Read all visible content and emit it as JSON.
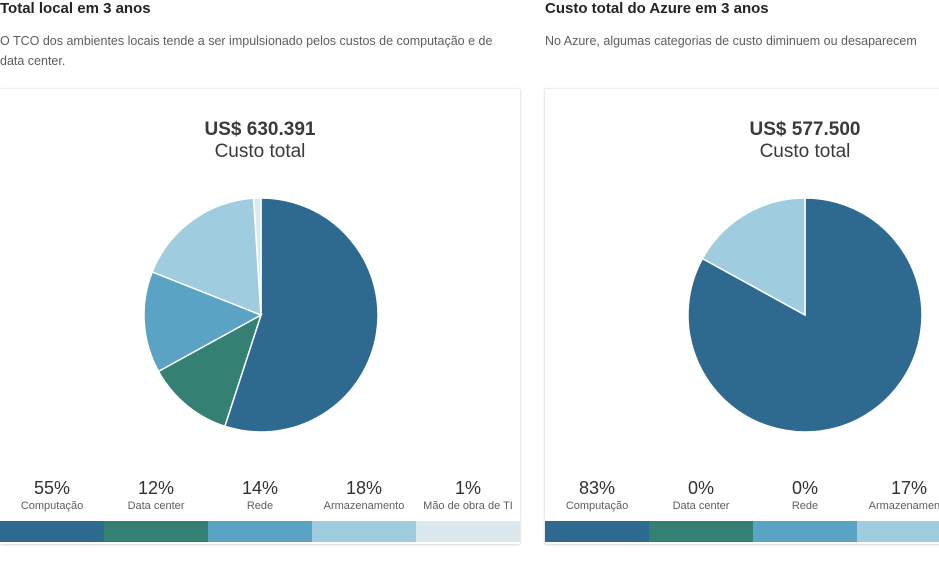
{
  "colors": {
    "computacao": "#2e6990",
    "data_center": "#348072",
    "rede": "#5ba3c5",
    "armazenamento": "#a0cce0",
    "mao_de_obra": "#dce8ee"
  },
  "left": {
    "title": "Total local em 3 anos",
    "description": "O TCO dos ambientes locais tende a ser impulsionado pelos custos de computação e de data center.",
    "total_amount": "US$ 630.391",
    "total_label": "Custo total",
    "legend": [
      {
        "pct": "55%",
        "label": "Computação",
        "color": "#2e6990"
      },
      {
        "pct": "12%",
        "label": "Data center",
        "color": "#348072"
      },
      {
        "pct": "14%",
        "label": "Rede",
        "color": "#5ba3c5"
      },
      {
        "pct": "18%",
        "label": "Armazenamento",
        "color": "#a0cce0"
      },
      {
        "pct": "1%",
        "label": "Mão de obra de TI",
        "color": "#dce8ee"
      }
    ]
  },
  "right": {
    "title": "Custo total do Azure em 3 anos",
    "description": "No Azure, algumas categorias de custo diminuem ou desaparecem",
    "total_amount": "US$ 577.500",
    "total_label": "Custo total",
    "legend": [
      {
        "pct": "83%",
        "label": "Computação",
        "color": "#2e6990"
      },
      {
        "pct": "0%",
        "label": "Data center",
        "color": "#348072"
      },
      {
        "pct": "0%",
        "label": "Rede",
        "color": "#5ba3c5"
      },
      {
        "pct": "17%",
        "label": "Armazenamento",
        "color": "#a0cce0"
      },
      {
        "pct": "",
        "label": "",
        "color": "#dce8ee"
      }
    ]
  },
  "chart_data": [
    {
      "type": "pie",
      "title": "US$ 630.391 Custo total",
      "categories": [
        "Computação",
        "Data center",
        "Rede",
        "Armazenamento",
        "Mão de obra de TI"
      ],
      "values": [
        55,
        12,
        14,
        18,
        1
      ],
      "colors": [
        "#2e6990",
        "#348072",
        "#5ba3c5",
        "#a0cce0",
        "#dce8ee"
      ],
      "legend": "bottom"
    },
    {
      "type": "pie",
      "title": "US$ 577.500 Custo total",
      "categories": [
        "Computação",
        "Data center",
        "Rede",
        "Armazenamento"
      ],
      "values": [
        83,
        0,
        0,
        17
      ],
      "colors": [
        "#2e6990",
        "#348072",
        "#5ba3c5",
        "#a0cce0"
      ],
      "legend": "bottom"
    }
  ]
}
